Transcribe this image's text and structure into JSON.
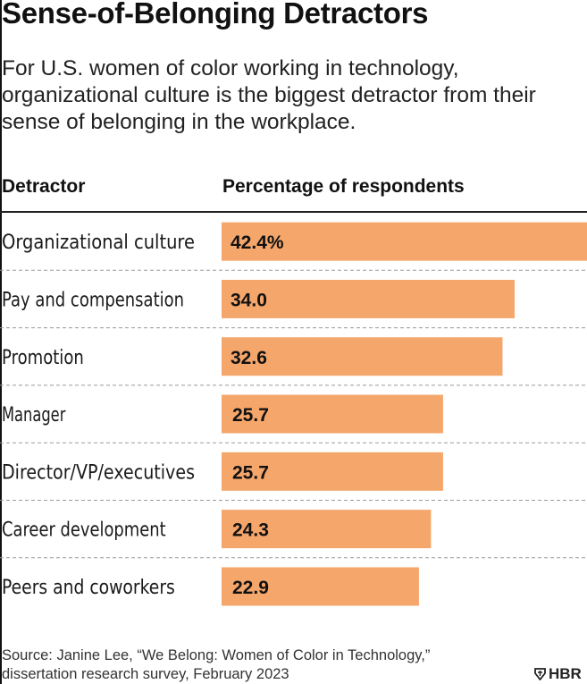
{
  "title": "Sense-of-Belonging Detractors",
  "subtitle": "For U.S. women of color working in technology, organizational culture is the biggest detractor from their sense of belonging in the workplace.",
  "source": {
    "line1": "Source: Janine Lee, “We Belong: Women of Color in Technology,”",
    "line2": "dissertation research survey, February 2023"
  },
  "brand": "HBR",
  "colors": {
    "bar": "#F5A66B",
    "text": "#1a1a1a",
    "divider": "#9a9a9a"
  },
  "chart_data": {
    "type": "bar",
    "orientation": "horizontal",
    "title": "Sense-of-Belonging Detractors",
    "xlabel": "Percentage of respondents",
    "ylabel": "Detractor",
    "categories": [
      "Organizational culture",
      "Pay and compensation",
      "Promotion",
      "Manager",
      "Director/VP/executives",
      "Career development",
      "Peers and coworkers"
    ],
    "values": [
      42.4,
      34.0,
      32.6,
      25.7,
      25.7,
      24.3,
      22.9
    ],
    "labels": [
      "42.4%",
      "34.0",
      "32.6",
      "25.7",
      "25.7",
      "24.3",
      "22.9"
    ],
    "xlim": [
      0,
      42.4
    ],
    "grid": false,
    "legend": "none"
  }
}
